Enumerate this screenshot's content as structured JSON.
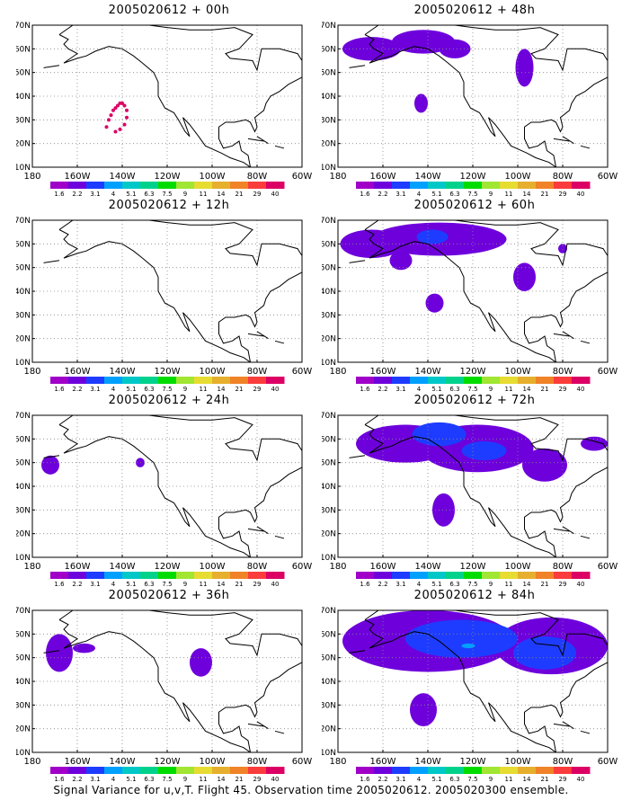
{
  "caption": "Signal Variance for u,v,T. Flight 45. Observation time 2005020612. 2005020300 ensemble.",
  "colorbar": {
    "labels": [
      "1.6",
      "2.2",
      "3.1",
      "4",
      "5.1",
      "6.3",
      "7.5",
      "9",
      "11",
      "14",
      "21",
      "29",
      "40"
    ],
    "colors": [
      "#a000c8",
      "#6e00dc",
      "#1e3cff",
      "#00a0ff",
      "#00c8c8",
      "#00d28c",
      "#00dc00",
      "#a0e632",
      "#e6dc32",
      "#e6af2d",
      "#f08228",
      "#fa3c3c",
      "#dc0064"
    ]
  },
  "chart_data": [
    {
      "type": "heatmap",
      "title": "2005020612 + 00h",
      "xlabel": "",
      "ylabel": "",
      "x_ticks": [
        "180",
        "160W",
        "140W",
        "120W",
        "100W",
        "80W",
        "60W"
      ],
      "y_ticks": [
        "10N",
        "20N",
        "30N",
        "40N",
        "50N",
        "60N",
        "70N"
      ],
      "xlim": [
        -180,
        -60
      ],
      "ylim": [
        10,
        70
      ],
      "regions": [],
      "points": [
        {
          "lon": -147,
          "lat": 27
        },
        {
          "lon": -146,
          "lat": 30
        },
        {
          "lon": -145,
          "lat": 32
        },
        {
          "lon": -144,
          "lat": 34
        },
        {
          "lon": -143,
          "lat": 35
        },
        {
          "lon": -142,
          "lat": 36
        },
        {
          "lon": -141,
          "lat": 37
        },
        {
          "lon": -140,
          "lat": 37
        },
        {
          "lon": -139,
          "lat": 36
        },
        {
          "lon": -138,
          "lat": 34
        },
        {
          "lon": -138,
          "lat": 31
        },
        {
          "lon": -139,
          "lat": 28
        },
        {
          "lon": -141,
          "lat": 26
        },
        {
          "lon": -143,
          "lat": 25
        }
      ]
    },
    {
      "type": "heatmap",
      "title": "2005020612 + 12h",
      "xlabel": "",
      "ylabel": "",
      "x_ticks": [
        "180",
        "160W",
        "140W",
        "120W",
        "100W",
        "80W",
        "60W"
      ],
      "y_ticks": [
        "10N",
        "20N",
        "30N",
        "40N",
        "50N",
        "60N",
        "70N"
      ],
      "xlim": [
        -180,
        -60
      ],
      "ylim": [
        10,
        70
      ],
      "regions": [],
      "points": []
    },
    {
      "type": "heatmap",
      "title": "2005020612 + 24h",
      "xlabel": "",
      "ylabel": "",
      "x_ticks": [
        "180",
        "160W",
        "140W",
        "120W",
        "100W",
        "80W",
        "60W"
      ],
      "y_ticks": [
        "10N",
        "20N",
        "30N",
        "40N",
        "50N",
        "60N",
        "70N"
      ],
      "xlim": [
        -180,
        -60
      ],
      "ylim": [
        10,
        70
      ],
      "regions": [
        {
          "level": 1,
          "lon": -172,
          "lat": 49,
          "rlon": 4,
          "rlat": 4
        },
        {
          "level": 1,
          "lon": -132,
          "lat": 50,
          "rlon": 2,
          "rlat": 2
        }
      ],
      "points": []
    },
    {
      "type": "heatmap",
      "title": "2005020612 + 36h",
      "xlabel": "",
      "ylabel": "",
      "x_ticks": [
        "180",
        "160W",
        "140W",
        "120W",
        "100W",
        "80W",
        "60W"
      ],
      "y_ticks": [
        "10N",
        "20N",
        "30N",
        "40N",
        "50N",
        "60N",
        "70N"
      ],
      "xlim": [
        -180,
        -60
      ],
      "ylim": [
        10,
        70
      ],
      "regions": [
        {
          "level": 1,
          "lon": -168,
          "lat": 52,
          "rlon": 6,
          "rlat": 8
        },
        {
          "level": 1,
          "lon": -157,
          "lat": 54,
          "rlon": 5,
          "rlat": 2
        },
        {
          "level": 1,
          "lon": -105,
          "lat": 48,
          "rlon": 5,
          "rlat": 6
        }
      ],
      "points": []
    },
    {
      "type": "heatmap",
      "title": "2005020612 + 48h",
      "xlabel": "",
      "ylabel": "",
      "x_ticks": [
        "180",
        "160W",
        "140W",
        "120W",
        "100W",
        "80W",
        "60W"
      ],
      "y_ticks": [
        "10N",
        "20N",
        "30N",
        "40N",
        "50N",
        "60N",
        "70N"
      ],
      "xlim": [
        -180,
        -60
      ],
      "ylim": [
        10,
        70
      ],
      "regions": [
        {
          "level": 1,
          "lon": -165,
          "lat": 60,
          "rlon": 13,
          "rlat": 5
        },
        {
          "level": 1,
          "lon": -142,
          "lat": 63,
          "rlon": 14,
          "rlat": 5
        },
        {
          "level": 1,
          "lon": -128,
          "lat": 60,
          "rlon": 7,
          "rlat": 4
        },
        {
          "level": 1,
          "lon": -97,
          "lat": 52,
          "rlon": 4,
          "rlat": 8
        },
        {
          "level": 1,
          "lon": -143,
          "lat": 37,
          "rlon": 3,
          "rlat": 4
        }
      ],
      "points": []
    },
    {
      "type": "heatmap",
      "title": "2005020612 + 60h",
      "xlabel": "",
      "ylabel": "",
      "x_ticks": [
        "180",
        "160W",
        "140W",
        "120W",
        "100W",
        "80W",
        "60W"
      ],
      "y_ticks": [
        "10N",
        "20N",
        "30N",
        "40N",
        "50N",
        "60N",
        "70N"
      ],
      "xlim": [
        -180,
        -60
      ],
      "ylim": [
        10,
        70
      ],
      "regions": [
        {
          "level": 1,
          "lon": -165,
          "lat": 60,
          "rlon": 14,
          "rlat": 6
        },
        {
          "level": 1,
          "lon": -135,
          "lat": 62,
          "rlon": 30,
          "rlat": 7
        },
        {
          "level": 1,
          "lon": -152,
          "lat": 53,
          "rlon": 5,
          "rlat": 4
        },
        {
          "level": 1,
          "lon": -97,
          "lat": 46,
          "rlon": 5,
          "rlat": 6
        },
        {
          "level": 1,
          "lon": -80,
          "lat": 58,
          "rlon": 2,
          "rlat": 2
        },
        {
          "level": 1,
          "lon": -137,
          "lat": 35,
          "rlon": 4,
          "rlat": 4
        },
        {
          "level": 2,
          "lon": -138,
          "lat": 63,
          "rlon": 7,
          "rlat": 3
        }
      ],
      "points": []
    },
    {
      "type": "heatmap",
      "title": "2005020612 + 72h",
      "xlabel": "",
      "ylabel": "",
      "x_ticks": [
        "180",
        "160W",
        "140W",
        "120W",
        "100W",
        "80W",
        "60W"
      ],
      "y_ticks": [
        "10N",
        "20N",
        "30N",
        "40N",
        "50N",
        "60N",
        "70N"
      ],
      "xlim": [
        -180,
        -60
      ],
      "ylim": [
        10,
        70
      ],
      "regions": [
        {
          "level": 1,
          "lon": -150,
          "lat": 58,
          "rlon": 22,
          "rlat": 8
        },
        {
          "level": 1,
          "lon": -118,
          "lat": 56,
          "rlon": 25,
          "rlat": 10
        },
        {
          "level": 1,
          "lon": -88,
          "lat": 49,
          "rlon": 10,
          "rlat": 7
        },
        {
          "level": 1,
          "lon": -66,
          "lat": 58,
          "rlon": 6,
          "rlat": 3
        },
        {
          "level": 1,
          "lon": -133,
          "lat": 30,
          "rlon": 5,
          "rlat": 7
        },
        {
          "level": 2,
          "lon": -135,
          "lat": 62,
          "rlon": 12,
          "rlat": 5
        },
        {
          "level": 2,
          "lon": -115,
          "lat": 55,
          "rlon": 10,
          "rlat": 4
        }
      ],
      "points": []
    },
    {
      "type": "heatmap",
      "title": "2005020612 + 84h",
      "xlabel": "",
      "ylabel": "",
      "x_ticks": [
        "180",
        "160W",
        "140W",
        "120W",
        "100W",
        "80W",
        "60W"
      ],
      "y_ticks": [
        "10N",
        "20N",
        "30N",
        "40N",
        "50N",
        "60N",
        "70N"
      ],
      "xlim": [
        -180,
        -60
      ],
      "ylim": [
        10,
        70
      ],
      "regions": [
        {
          "level": 1,
          "lon": -140,
          "lat": 57,
          "rlon": 38,
          "rlat": 13
        },
        {
          "level": 1,
          "lon": -85,
          "lat": 55,
          "rlon": 25,
          "rlat": 12
        },
        {
          "level": 1,
          "lon": -142,
          "lat": 28,
          "rlon": 6,
          "rlat": 7
        },
        {
          "level": 2,
          "lon": -125,
          "lat": 58,
          "rlon": 25,
          "rlat": 8
        },
        {
          "level": 2,
          "lon": -88,
          "lat": 52,
          "rlon": 14,
          "rlat": 7
        },
        {
          "level": 3,
          "lon": -122,
          "lat": 55,
          "rlon": 3,
          "rlat": 1
        }
      ],
      "points": []
    }
  ]
}
